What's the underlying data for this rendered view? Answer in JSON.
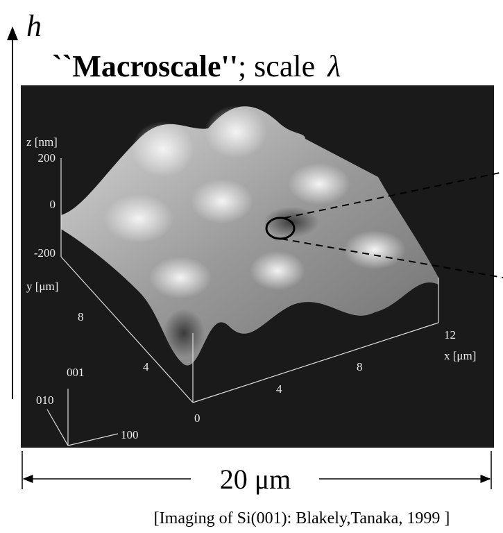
{
  "header": {
    "axis_label": "h",
    "title_bold": "``Macroscale''",
    "title_rest": "; scale",
    "title_symbol": "λ"
  },
  "image": {
    "z_label": "z [nm]",
    "z_ticks": [
      "200",
      "0",
      "-200"
    ],
    "y_label": "y [μm]",
    "y_ticks": [
      "8",
      "4",
      "0"
    ],
    "x_label": "x [μm]",
    "x_ticks": [
      "4",
      "8",
      "12"
    ],
    "crystal_axes": [
      "001",
      "010",
      "100"
    ]
  },
  "scale_bar": "20 μm",
  "citation": "[Imaging of Si(001): Blakely,Tanaka, 1999 ]"
}
